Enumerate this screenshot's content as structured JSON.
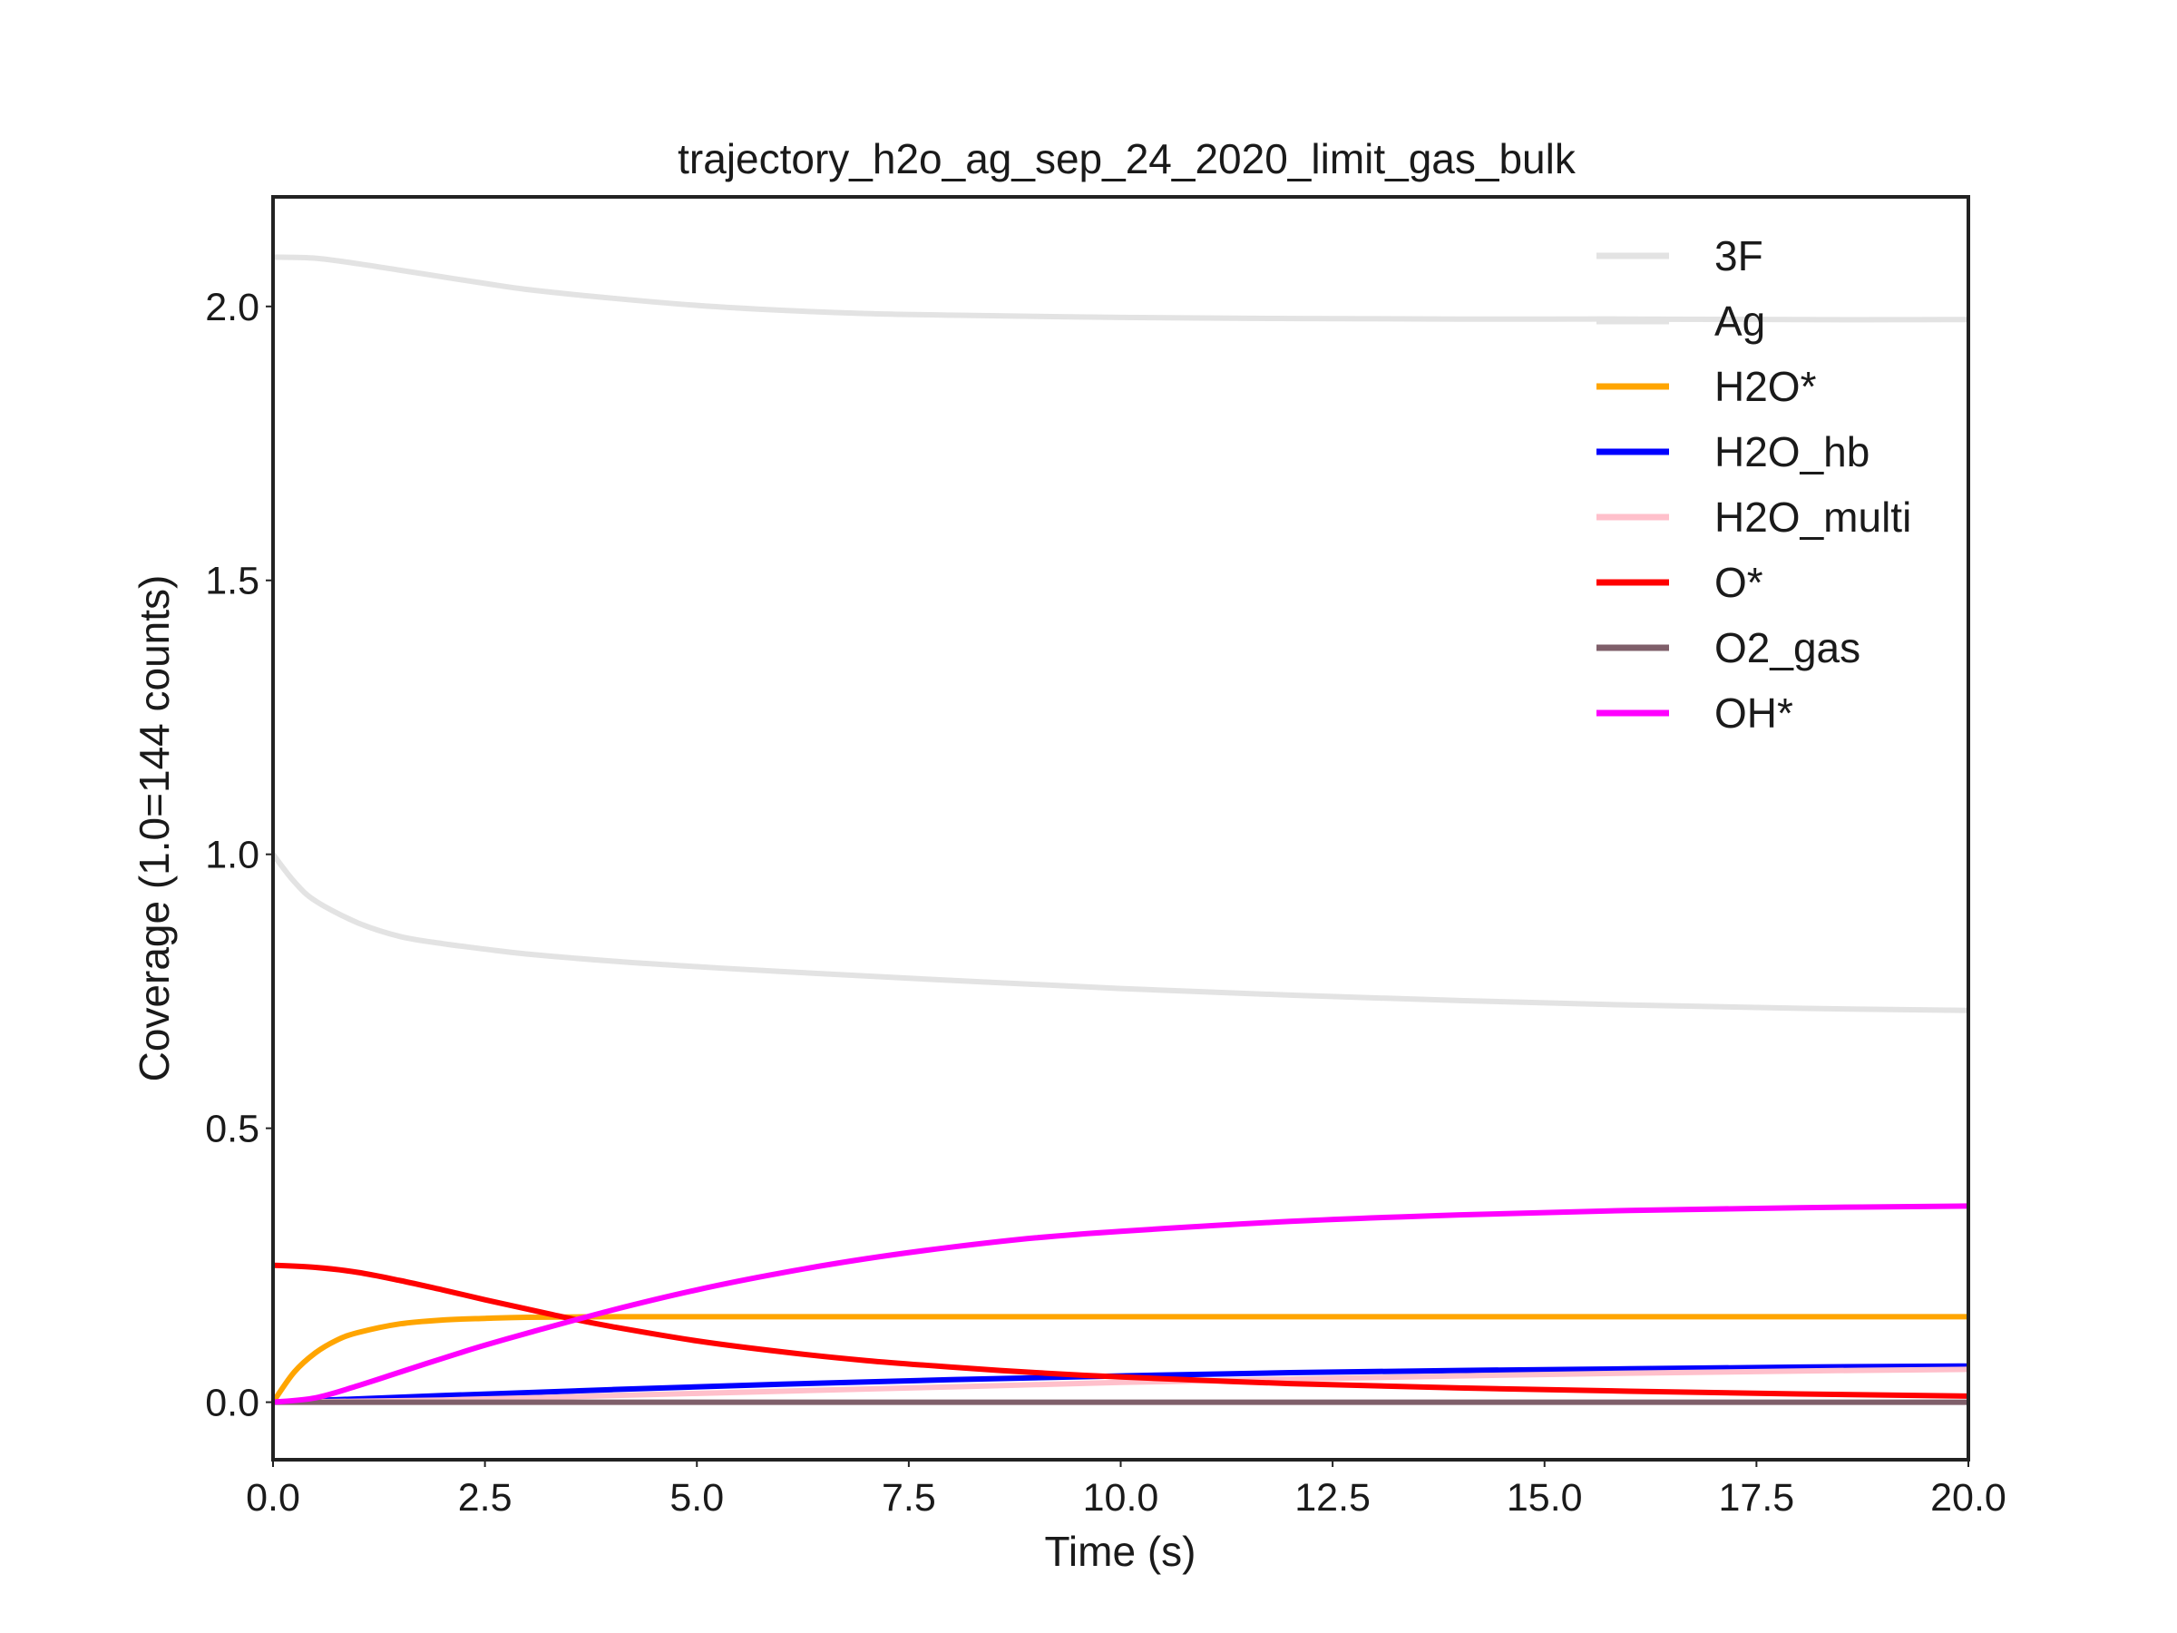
{
  "colors": {
    "background": "#ffffff",
    "frame": "#222222"
  },
  "chart_data": {
    "type": "line",
    "title": "trajectory_h2o_ag_sep_24_2020_limit_gas_bulk",
    "xlabel": "Time (s)",
    "ylabel": "Coverage (1.0=144 counts)",
    "xlim": [
      0,
      20
    ],
    "ylim": [
      -0.105,
      2.2
    ],
    "xticks": [
      "0.0",
      "2.5",
      "5.0",
      "7.5",
      "10.0",
      "12.5",
      "15.0",
      "17.5",
      "20.0"
    ],
    "yticks": [
      "0.0",
      "0.5",
      "1.0",
      "1.5",
      "2.0"
    ],
    "grid": false,
    "legend": "top-right",
    "series": [
      {
        "name": "3F",
        "color": "#e3e3e3",
        "x": [
          0,
          0.5,
          1,
          1.5,
          2,
          2.5,
          3,
          4,
          5,
          6,
          7,
          8,
          10,
          12,
          14,
          16,
          18,
          20
        ],
        "y": [
          2.09,
          2.088,
          2.078,
          2.066,
          2.054,
          2.042,
          2.031,
          2.015,
          2.002,
          1.993,
          1.987,
          1.984,
          1.98,
          1.978,
          1.977,
          1.977,
          1.976,
          1.976
        ]
      },
      {
        "name": "Ag",
        "color": "#e3e3e3",
        "x": [
          0,
          0.25,
          0.5,
          1,
          1.5,
          2,
          2.5,
          3,
          4,
          5,
          6,
          8,
          10,
          12,
          14,
          16,
          18,
          20
        ],
        "y": [
          1.0,
          0.95,
          0.915,
          0.875,
          0.85,
          0.837,
          0.827,
          0.818,
          0.805,
          0.795,
          0.786,
          0.77,
          0.755,
          0.743,
          0.733,
          0.725,
          0.719,
          0.715
        ]
      },
      {
        "name": "H2O*",
        "color": "#ffa500",
        "x": [
          0,
          0.25,
          0.5,
          0.75,
          1,
          1.5,
          2,
          2.5,
          3,
          4,
          5,
          6,
          8,
          10,
          15,
          20
        ],
        "y": [
          0.0,
          0.055,
          0.09,
          0.113,
          0.127,
          0.143,
          0.15,
          0.153,
          0.155,
          0.156,
          0.156,
          0.156,
          0.156,
          0.156,
          0.156,
          0.156
        ]
      },
      {
        "name": "H2O_hb",
        "color": "#0000ff",
        "x": [
          0,
          2,
          4,
          6,
          8,
          10,
          12,
          14,
          16,
          18,
          20
        ],
        "y": [
          0.0,
          0.012,
          0.023,
          0.033,
          0.041,
          0.048,
          0.054,
          0.058,
          0.061,
          0.064,
          0.066
        ]
      },
      {
        "name": "H2O_multi",
        "color": "#ffc0cb",
        "x": [
          0,
          2,
          4,
          6,
          8,
          10,
          12,
          14,
          16,
          18,
          20
        ],
        "y": [
          0.0,
          0.004,
          0.012,
          0.02,
          0.028,
          0.036,
          0.042,
          0.048,
          0.053,
          0.057,
          0.06
        ]
      },
      {
        "name": "O*",
        "color": "#ff0000",
        "x": [
          0,
          0.5,
          1,
          1.5,
          2,
          2.5,
          3,
          3.5,
          4,
          5,
          6,
          7,
          8,
          9,
          10,
          12,
          14,
          16,
          18,
          20
        ],
        "y": [
          0.25,
          0.246,
          0.237,
          0.222,
          0.205,
          0.187,
          0.17,
          0.153,
          0.138,
          0.112,
          0.092,
          0.076,
          0.064,
          0.054,
          0.046,
          0.034,
          0.026,
          0.02,
          0.015,
          0.011
        ]
      },
      {
        "name": "O2_gas",
        "color": "#7f5f6a",
        "x": [
          0,
          20
        ],
        "y": [
          0.0,
          0.0
        ]
      },
      {
        "name": "OH*",
        "color": "#ff00ff",
        "x": [
          0,
          0.5,
          1,
          1.5,
          2,
          2.5,
          3,
          4,
          5,
          6,
          7,
          8,
          9,
          10,
          12,
          14,
          16,
          18,
          20
        ],
        "y": [
          0.0,
          0.008,
          0.03,
          0.055,
          0.08,
          0.104,
          0.126,
          0.168,
          0.205,
          0.236,
          0.262,
          0.283,
          0.3,
          0.312,
          0.33,
          0.342,
          0.35,
          0.355,
          0.358
        ]
      }
    ]
  }
}
